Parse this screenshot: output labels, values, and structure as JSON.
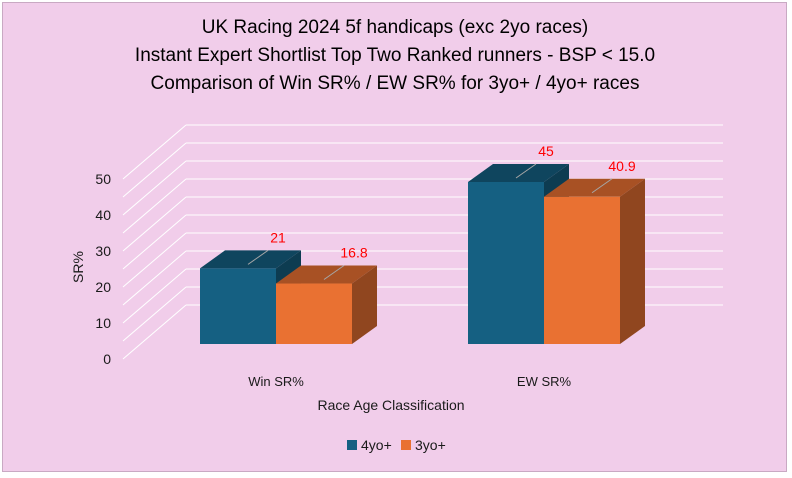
{
  "chart_data": {
    "type": "bar",
    "title_lines": [
      "UK Racing 2024 5f handicaps (exc 2yo races)",
      "Instant Expert Shortlist Top Two Ranked runners - BSP < 15.0",
      "Comparison of Win SR% / EW SR% for 3yo+ / 4yo+ races"
    ],
    "xlabel": "Race Age Classification",
    "ylabel": "SR%",
    "categories": [
      "Win SR%",
      "EW SR%"
    ],
    "series": [
      {
        "name": "4yo+",
        "values": [
          21,
          45
        ],
        "color": "#156082"
      },
      {
        "name": "3yo+",
        "values": [
          16.8,
          40.9
        ],
        "color": "#e97132"
      }
    ],
    "ylim": [
      0,
      50
    ],
    "yticks": [
      "0",
      "10",
      "20",
      "30",
      "40",
      "50"
    ],
    "data_labels": [
      [
        "21",
        "45"
      ],
      [
        "16.8",
        "40.9"
      ]
    ],
    "data_label_color": "#ff0000",
    "grid": true,
    "style": "3d-clustered-column",
    "legend_position": "bottom"
  }
}
